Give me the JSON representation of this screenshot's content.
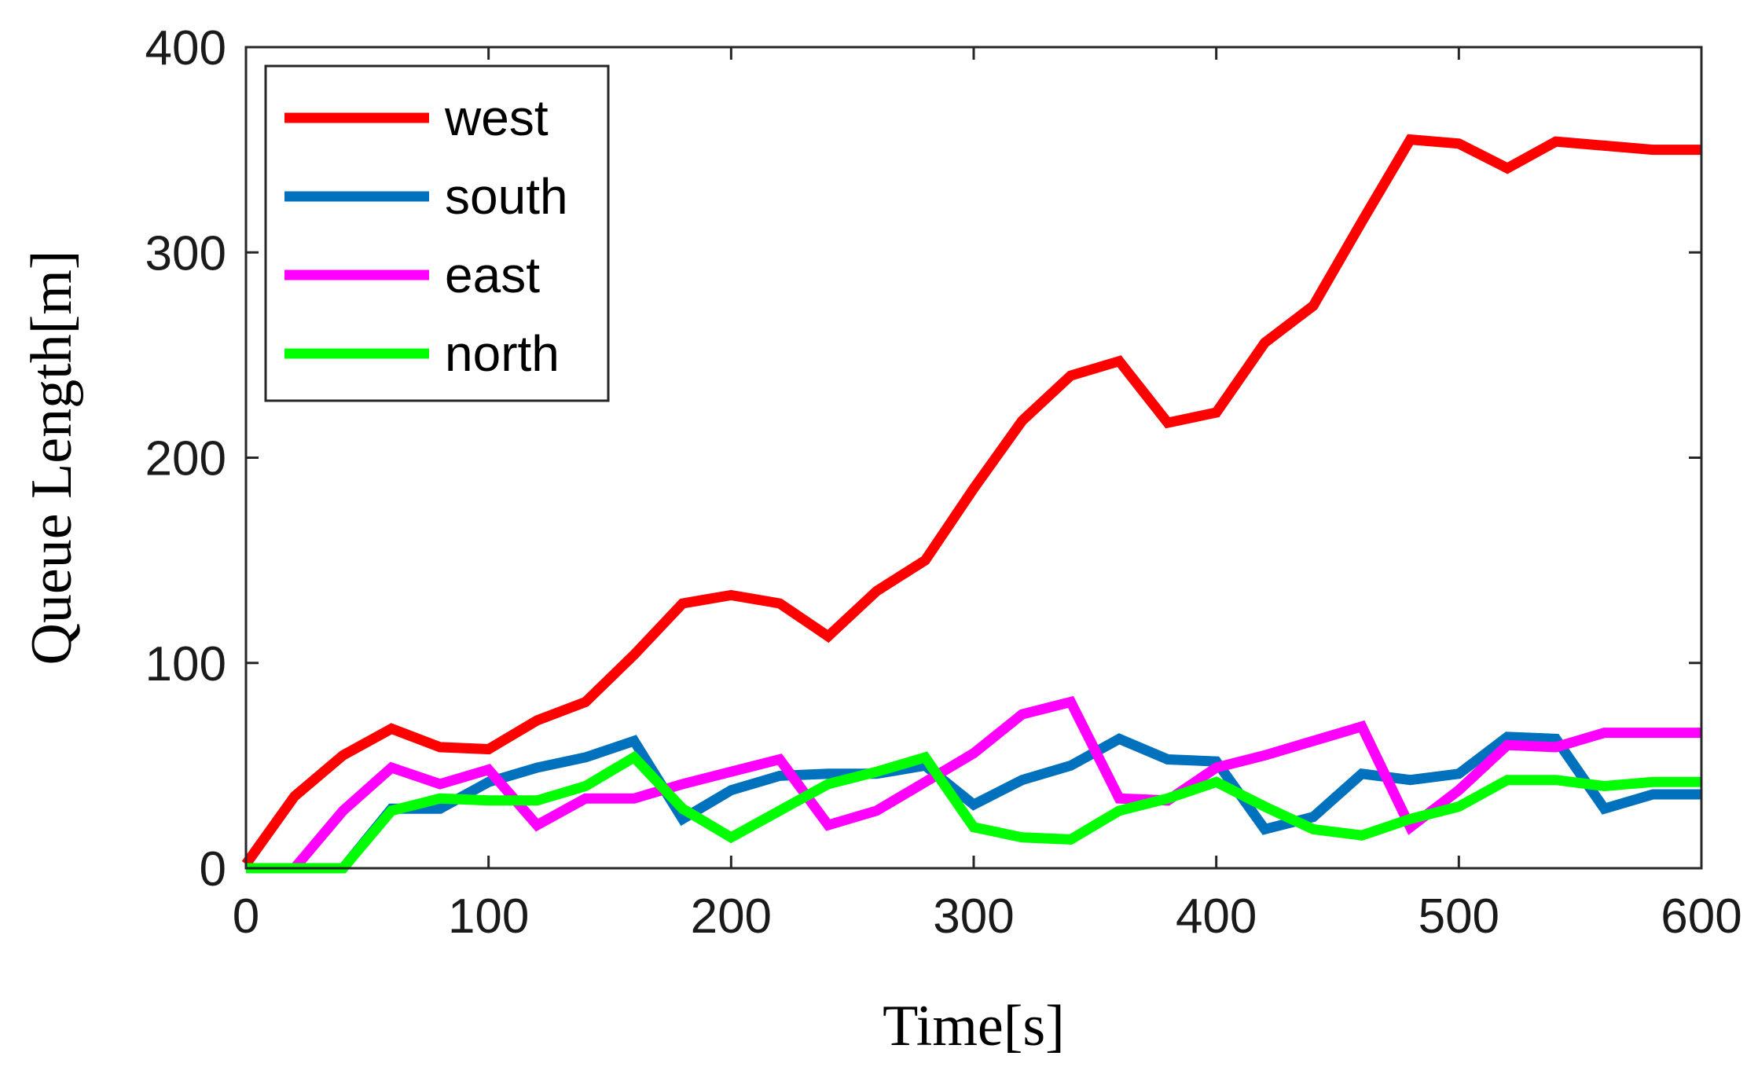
{
  "chart_data": {
    "type": "line",
    "title": "",
    "xlabel": "Time[s]",
    "ylabel": "Queue Length[m]",
    "xlim": [
      0,
      600
    ],
    "ylim": [
      0,
      400
    ],
    "xticks": [
      0,
      100,
      200,
      300,
      400,
      500,
      600
    ],
    "yticks": [
      0,
      100,
      200,
      300,
      400
    ],
    "grid": false,
    "legend_position": "top-left",
    "x": [
      0,
      20,
      40,
      60,
      80,
      100,
      120,
      140,
      160,
      180,
      200,
      220,
      240,
      260,
      280,
      300,
      320,
      340,
      360,
      380,
      400,
      420,
      440,
      460,
      480,
      500,
      520,
      540,
      560,
      580,
      600
    ],
    "series": [
      {
        "name": "west",
        "color": "#ff0000",
        "values": [
          2,
          35,
          55,
          68,
          59,
          58,
          72,
          81,
          104,
          129,
          133,
          129,
          113,
          135,
          150,
          185,
          218,
          240,
          247,
          217,
          222,
          256,
          274,
          315,
          355,
          353,
          341,
          354,
          352,
          350,
          350
        ]
      },
      {
        "name": "south",
        "color": "#0072bd",
        "values": [
          0,
          0,
          0,
          29,
          29,
          42,
          49,
          54,
          62,
          24,
          38,
          45,
          46,
          46,
          50,
          31,
          43,
          50,
          63,
          53,
          52,
          19,
          25,
          46,
          43,
          46,
          64,
          63,
          29,
          36,
          36
        ]
      },
      {
        "name": "east",
        "color": "#ff00ff",
        "values": [
          0,
          0,
          28,
          49,
          41,
          48,
          21,
          34,
          34,
          41,
          47,
          53,
          21,
          28,
          42,
          56,
          75,
          81,
          34,
          33,
          49,
          55,
          62,
          69,
          20,
          38,
          60,
          59,
          66,
          66,
          66
        ]
      },
      {
        "name": "north",
        "color": "#00ff00",
        "values": [
          0,
          0,
          0,
          28,
          34,
          33,
          33,
          40,
          54,
          29,
          15,
          28,
          41,
          47,
          54,
          20,
          15,
          14,
          28,
          34,
          42,
          30,
          19,
          16,
          24,
          30,
          43,
          43,
          40,
          42,
          42
        ]
      }
    ]
  }
}
